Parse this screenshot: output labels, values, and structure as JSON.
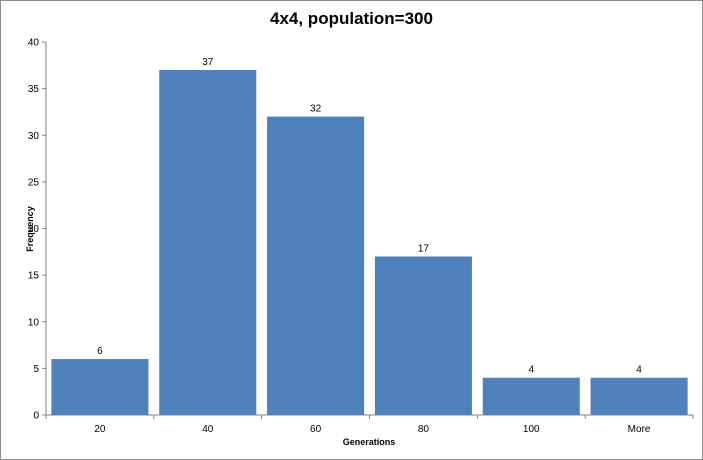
{
  "chart_data": {
    "type": "bar",
    "title": "4x4, population=300",
    "xlabel": "Generations",
    "ylabel": "Frequency",
    "categories": [
      "20",
      "40",
      "60",
      "80",
      "100",
      "More"
    ],
    "values": [
      6,
      37,
      32,
      17,
      4,
      4
    ],
    "data_labels": [
      "6",
      "37",
      "32",
      "17",
      "4",
      "4"
    ],
    "ylim": [
      0,
      40
    ],
    "yticks": [
      0,
      5,
      10,
      15,
      20,
      25,
      30,
      35,
      40
    ],
    "grid": false,
    "legend": "none",
    "bar_color": "#4F81BD"
  }
}
